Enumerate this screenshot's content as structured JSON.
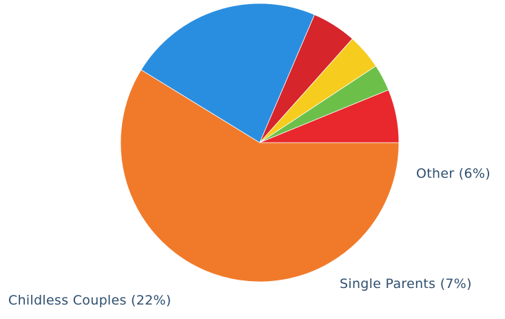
{
  "chart_data": {
    "type": "pie",
    "slices": [
      {
        "value": 57,
        "color": "#f07a2a",
        "label": ""
      },
      {
        "value": 22,
        "color": "#2a8ee0",
        "label": "Childless Couples (22%)"
      },
      {
        "value": 5,
        "color": "#d6252b",
        "label": ""
      },
      {
        "value": 4,
        "color": "#f6cc1e",
        "label": ""
      },
      {
        "value": 3,
        "color": "#6cc04a",
        "label": ""
      },
      {
        "value": 6,
        "color": "#e8282c",
        "label": "Other (6%)"
      }
    ],
    "extra_labels": [
      {
        "text": "Single Parents (7%)"
      }
    ],
    "start_angle_deg": 0,
    "direction": "clockwise",
    "legend": "none"
  }
}
